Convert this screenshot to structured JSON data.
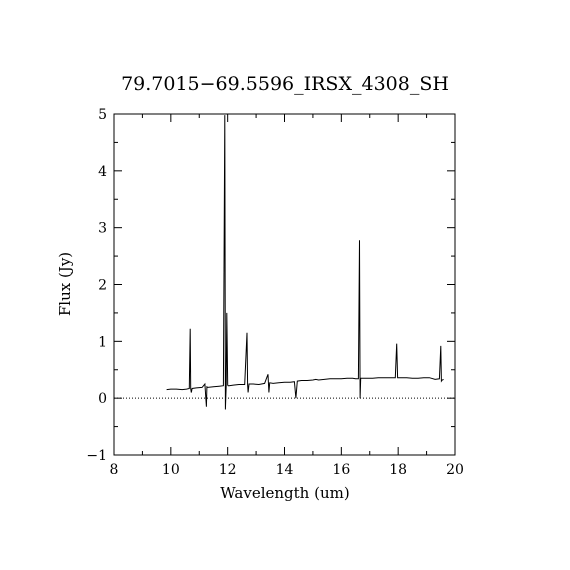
{
  "chart_data": {
    "type": "line",
    "title": "79.7015−69.5596_IRSX_4308_SH",
    "xlabel": "Wavelength (um)",
    "ylabel": "Flux (Jy)",
    "xlim": [
      8,
      20
    ],
    "ylim": [
      -1,
      5
    ],
    "x_ticks": [
      "8",
      "10",
      "12",
      "14",
      "16",
      "18",
      "20"
    ],
    "y_ticks": [
      "−1",
      "0",
      "1",
      "2",
      "3",
      "4",
      "5"
    ],
    "zero_line": {
      "style": "dotted",
      "y": 0
    },
    "grid": false,
    "legend": "none",
    "colors": {
      "line": "#000000",
      "axes": "#000000",
      "background": "#ffffff"
    },
    "series": [
      {
        "x": [
          9.85,
          10.0,
          10.2,
          10.4,
          10.55,
          10.65,
          10.68,
          10.7,
          10.72,
          10.75,
          10.9,
          11.1,
          11.2,
          11.25,
          11.27,
          11.3,
          11.5,
          11.7,
          11.85,
          11.9,
          11.92,
          11.95,
          11.97,
          12.0,
          12.02,
          12.05,
          12.2,
          12.4,
          12.6,
          12.68,
          12.7,
          12.72,
          12.75,
          12.9,
          13.1,
          13.3,
          13.42,
          13.45,
          13.48,
          13.6,
          13.8,
          14.0,
          14.2,
          14.35,
          14.4,
          14.45,
          14.6,
          14.8,
          15.0,
          15.1,
          15.2,
          15.4,
          15.6,
          15.8,
          16.0,
          16.2,
          16.4,
          16.5,
          16.6,
          16.64,
          16.66,
          16.68,
          16.7,
          16.9,
          17.1,
          17.3,
          17.5,
          17.7,
          17.9,
          17.95,
          17.98,
          18.0,
          18.1,
          18.3,
          18.5,
          18.7,
          18.9,
          19.1,
          19.3,
          19.45,
          19.5,
          19.52,
          19.55,
          19.6
        ],
        "y": [
          0.15,
          0.16,
          0.16,
          0.15,
          0.16,
          0.17,
          1.22,
          0.17,
          0.1,
          0.17,
          0.18,
          0.19,
          0.25,
          -0.15,
          0.2,
          0.19,
          0.2,
          0.21,
          0.22,
          4.98,
          -0.2,
          0.22,
          1.5,
          0.23,
          0.22,
          0.22,
          0.23,
          0.24,
          0.24,
          1.15,
          0.24,
          0.1,
          0.25,
          0.25,
          0.24,
          0.26,
          0.42,
          0.1,
          0.27,
          0.26,
          0.27,
          0.28,
          0.28,
          0.29,
          0.0,
          0.3,
          0.31,
          0.31,
          0.32,
          0.33,
          0.32,
          0.33,
          0.34,
          0.34,
          0.34,
          0.35,
          0.35,
          0.34,
          0.34,
          2.78,
          0.0,
          0.35,
          0.35,
          0.35,
          0.35,
          0.36,
          0.36,
          0.36,
          0.36,
          0.96,
          0.36,
          0.36,
          0.36,
          0.36,
          0.35,
          0.35,
          0.36,
          0.36,
          0.33,
          0.34,
          0.92,
          0.3,
          0.32,
          0.33
        ]
      }
    ]
  }
}
